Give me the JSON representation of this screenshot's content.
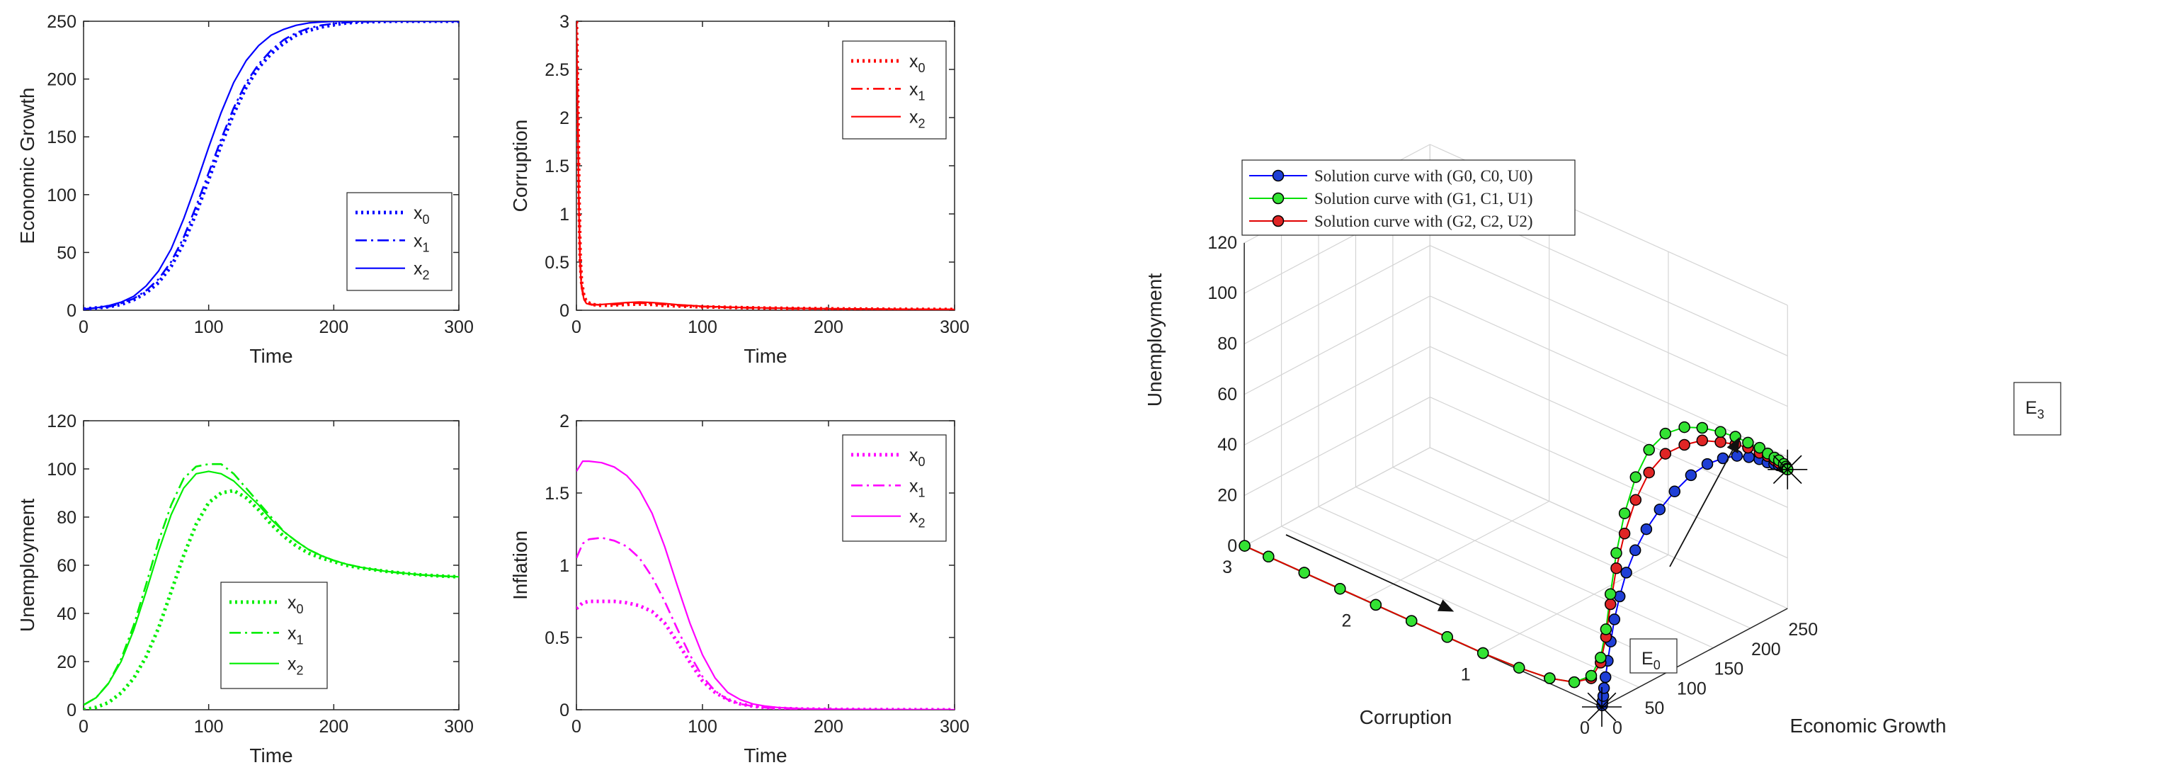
{
  "figure": {
    "panel_xlabel": "Time",
    "legend_base": "x",
    "legend_subs": [
      "0",
      "1",
      "2"
    ]
  },
  "chart_data": [
    {
      "id": "growth",
      "type": "line",
      "title": "",
      "xlabel": "Time",
      "ylabel": "Economic Growth",
      "color": "#0000ff",
      "xlim": [
        0,
        300
      ],
      "ylim": [
        0,
        250
      ],
      "xticks": [
        0,
        100,
        200,
        300
      ],
      "yticks": [
        0,
        50,
        100,
        150,
        200,
        250
      ],
      "legend_position": "bottom-right",
      "x": [
        0,
        10,
        20,
        30,
        40,
        50,
        60,
        70,
        80,
        90,
        100,
        110,
        120,
        130,
        140,
        150,
        160,
        170,
        180,
        190,
        200,
        210,
        220,
        230,
        240,
        250,
        260,
        270,
        280,
        290,
        300
      ],
      "series": [
        {
          "name": "x0",
          "style": "dotted",
          "values": [
            1,
            2,
            3,
            5,
            9,
            15,
            24,
            38,
            58,
            84,
            113,
            143,
            170,
            193,
            210,
            222,
            231,
            238,
            242,
            245,
            247,
            248.5,
            249.2,
            249.6,
            249.8,
            250,
            250,
            250,
            250,
            250,
            250
          ]
        },
        {
          "name": "x1",
          "style": "dashdot",
          "values": [
            1,
            2,
            3,
            6,
            10,
            17,
            27,
            42,
            63,
            90,
            119,
            148,
            175,
            197,
            213,
            225,
            234,
            240,
            244,
            246.5,
            248,
            249,
            249.5,
            249.8,
            250,
            250,
            250,
            250,
            250,
            250,
            250
          ]
        },
        {
          "name": "x2",
          "style": "solid",
          "values": [
            1,
            2,
            4,
            7,
            12,
            21,
            34,
            53,
            79,
            109,
            141,
            171,
            197,
            216,
            229,
            238,
            243,
            246.5,
            248.5,
            249.4,
            249.8,
            250,
            250,
            250,
            250,
            250,
            250,
            250,
            250,
            250,
            250
          ]
        }
      ]
    },
    {
      "id": "corruption",
      "type": "line",
      "title": "",
      "xlabel": "Time",
      "ylabel": "Corruption",
      "color": "#ff0000",
      "xlim": [
        0,
        300
      ],
      "ylim": [
        0,
        3
      ],
      "xticks": [
        0,
        100,
        200,
        300
      ],
      "yticks": [
        0,
        0.5,
        1,
        1.5,
        2,
        2.5,
        3
      ],
      "legend_position": "top-right",
      "x": [
        0,
        1,
        2,
        3,
        4,
        6,
        8,
        12,
        20,
        30,
        40,
        50,
        60,
        70,
        80,
        100,
        120,
        150,
        200,
        250,
        300
      ],
      "series": [
        {
          "name": "x0",
          "style": "dotted",
          "values": [
            3.0,
            2.2,
            1.2,
            0.55,
            0.3,
            0.14,
            0.09,
            0.06,
            0.05,
            0.055,
            0.06,
            0.065,
            0.06,
            0.05,
            0.045,
            0.035,
            0.03,
            0.022,
            0.015,
            0.01,
            0.008
          ]
        },
        {
          "name": "x1",
          "style": "dashdot",
          "values": [
            3.0,
            2.1,
            1.1,
            0.5,
            0.27,
            0.12,
            0.08,
            0.06,
            0.055,
            0.06,
            0.07,
            0.075,
            0.07,
            0.06,
            0.05,
            0.038,
            0.03,
            0.022,
            0.015,
            0.01,
            0.008
          ]
        },
        {
          "name": "x2",
          "style": "solid",
          "values": [
            3.0,
            2.0,
            1.0,
            0.45,
            0.24,
            0.11,
            0.07,
            0.055,
            0.06,
            0.07,
            0.08,
            0.085,
            0.08,
            0.07,
            0.058,
            0.042,
            0.032,
            0.024,
            0.016,
            0.011,
            0.008
          ]
        }
      ]
    },
    {
      "id": "unemployment",
      "type": "line",
      "title": "",
      "xlabel": "Time",
      "ylabel": "Unemployment",
      "color": "#00ee00",
      "xlim": [
        0,
        300
      ],
      "ylim": [
        0,
        120
      ],
      "xticks": [
        0,
        100,
        200,
        300
      ],
      "yticks": [
        0,
        20,
        40,
        60,
        80,
        100,
        120
      ],
      "legend_position": "bottom-center",
      "x": [
        0,
        10,
        20,
        30,
        40,
        50,
        60,
        70,
        80,
        90,
        100,
        110,
        120,
        130,
        140,
        150,
        160,
        170,
        180,
        190,
        200,
        210,
        220,
        230,
        240,
        250,
        260,
        270,
        280,
        290,
        300
      ],
      "series": [
        {
          "name": "x0",
          "style": "dotted",
          "values": [
            0,
            1,
            3,
            7,
            13,
            22,
            34,
            49,
            64,
            77,
            86,
            90,
            91,
            88,
            83,
            77,
            72,
            68,
            65,
            63,
            61.5,
            60,
            59,
            58.3,
            57.6,
            57,
            56.5,
            56,
            55.7,
            55.4,
            55.2
          ]
        },
        {
          "name": "x1",
          "style": "dashdot",
          "values": [
            2,
            5,
            11,
            21,
            35,
            52,
            70,
            85,
            96,
            101,
            102,
            102,
            98,
            92,
            86,
            80,
            74,
            70,
            66.5,
            64,
            62,
            60.5,
            59.3,
            58.4,
            57.6,
            57,
            56.5,
            56,
            55.7,
            55.4,
            55.2
          ]
        },
        {
          "name": "x2",
          "style": "solid",
          "values": [
            2,
            5,
            11,
            20,
            33,
            49,
            66,
            81,
            92,
            98,
            99,
            98,
            95,
            90,
            85,
            79,
            74,
            70,
            66.5,
            64,
            62,
            60.5,
            59.3,
            58.4,
            57.6,
            57,
            56.5,
            56,
            55.7,
            55.4,
            55.2
          ]
        }
      ]
    },
    {
      "id": "inflation",
      "type": "line",
      "title": "",
      "xlabel": "Time",
      "ylabel": "Inflation",
      "color": "#ff00ff",
      "xlim": [
        0,
        300
      ],
      "ylim": [
        0,
        2
      ],
      "xticks": [
        0,
        100,
        200,
        300
      ],
      "yticks": [
        0,
        0.5,
        1,
        1.5,
        2
      ],
      "legend_position": "top-right",
      "x": [
        0,
        5,
        10,
        20,
        30,
        40,
        50,
        60,
        70,
        80,
        90,
        100,
        110,
        120,
        130,
        140,
        150,
        160,
        180,
        200,
        250,
        300
      ],
      "series": [
        {
          "name": "x0",
          "style": "dotted",
          "values": [
            0.7,
            0.74,
            0.75,
            0.75,
            0.75,
            0.74,
            0.72,
            0.68,
            0.6,
            0.47,
            0.33,
            0.2,
            0.12,
            0.07,
            0.04,
            0.025,
            0.015,
            0.01,
            0.005,
            0.003,
            0.001,
            0
          ]
        },
        {
          "name": "x1",
          "style": "dashdot",
          "values": [
            1.05,
            1.15,
            1.18,
            1.19,
            1.17,
            1.13,
            1.05,
            0.92,
            0.75,
            0.56,
            0.38,
            0.23,
            0.13,
            0.07,
            0.04,
            0.025,
            0.015,
            0.01,
            0.005,
            0.003,
            0.001,
            0
          ]
        },
        {
          "name": "x2",
          "style": "solid",
          "values": [
            1.65,
            1.72,
            1.72,
            1.71,
            1.68,
            1.62,
            1.52,
            1.36,
            1.13,
            0.86,
            0.6,
            0.38,
            0.22,
            0.12,
            0.07,
            0.04,
            0.025,
            0.015,
            0.007,
            0.004,
            0.001,
            0
          ]
        }
      ]
    },
    {
      "id": "phase3d",
      "type": "line3d",
      "title": "",
      "xlabel": "Economic Growth",
      "ylabel": "Corruption",
      "zlabel": "Unemployment",
      "xlim": [
        0,
        250
      ],
      "ylim": [
        0,
        3
      ],
      "zlim": [
        0,
        120
      ],
      "xticks": [
        0,
        50,
        100,
        150,
        200,
        250
      ],
      "yticks": [
        0,
        1,
        2,
        3
      ],
      "zticks": [
        0,
        20,
        40,
        60,
        80,
        100,
        120
      ],
      "legend_position": "top-left",
      "annotations": [
        "E",
        "E"
      ],
      "annotation_subs": [
        "0",
        "3"
      ],
      "series": [
        {
          "name": "Solution curve with (G0, C0, U0)",
          "color": "#0000ff",
          "marker": "#1f3fd6",
          "G": [
            0.5,
            1,
            2,
            3,
            5,
            8,
            12,
            17,
            24,
            33,
            45,
            60,
            78,
            98,
            120,
            142,
            163,
            182,
            198,
            212,
            223,
            232,
            238,
            243,
            246,
            248,
            249.5,
            250
          ],
          "C": [
            0,
            0,
            0,
            0,
            0,
            0,
            0,
            0,
            0,
            0,
            0,
            0,
            0,
            0,
            0,
            0,
            0,
            0,
            0,
            0,
            0,
            0,
            0,
            0,
            0,
            0,
            0,
            0
          ],
          "U": [
            0.5,
            2,
            4,
            7,
            11,
            17,
            24,
            32,
            40,
            48,
            55,
            61,
            66,
            70,
            73,
            74,
            73,
            71,
            68,
            65,
            62,
            60,
            58.5,
            57.2,
            56.3,
            55.7,
            55.3,
            55
          ]
        },
        {
          "name": "Solution curve with (G1, C1, U1)",
          "color": "#00e000",
          "marker": "#33e333",
          "G": [
            0.5,
            0.5,
            0.5,
            0.5,
            0.5,
            0.5,
            0.5,
            0.5,
            1,
            2,
            3,
            5,
            8,
            12,
            18,
            26,
            37,
            52,
            70,
            92,
            116,
            140,
            163,
            183,
            200,
            214,
            225,
            234,
            240,
            245,
            248,
            249.5,
            250
          ],
          "C": [
            3.0,
            2.8,
            2.5,
            2.2,
            1.9,
            1.6,
            1.3,
            1.0,
            0.7,
            0.45,
            0.25,
            0.12,
            0.06,
            0.04,
            0.04,
            0.04,
            0.04,
            0.04,
            0.04,
            0.04,
            0.03,
            0.03,
            0.02,
            0.02,
            0.02,
            0.01,
            0.01,
            0.01,
            0.01,
            0,
            0,
            0,
            0
          ],
          "U": [
            0,
            0,
            0,
            0,
            0,
            0,
            0,
            0,
            0.5,
            1.5,
            4,
            9,
            17,
            28,
            41,
            56,
            70,
            82,
            90,
            93,
            92,
            88,
            83,
            78,
            73,
            69,
            65,
            62,
            60,
            58,
            56.5,
            55.5,
            55
          ]
        },
        {
          "name": "Solution curve with (G2, C2, U2)",
          "color": "#e00000",
          "marker": "#e02525",
          "G": [
            0.5,
            0.5,
            0.5,
            0.5,
            0.5,
            0.5,
            0.5,
            0.5,
            1,
            2,
            3,
            5,
            8,
            12,
            18,
            26,
            37,
            52,
            70,
            92,
            116,
            140,
            163,
            183,
            200,
            214,
            225,
            234,
            240,
            245,
            248,
            249.5,
            250
          ],
          "C": [
            3.0,
            2.8,
            2.5,
            2.2,
            1.9,
            1.6,
            1.3,
            1.0,
            0.7,
            0.45,
            0.25,
            0.12,
            0.06,
            0.04,
            0.04,
            0.04,
            0.04,
            0.04,
            0.04,
            0.04,
            0.03,
            0.03,
            0.02,
            0.02,
            0.02,
            0.01,
            0.01,
            0.01,
            0.01,
            0,
            0,
            0,
            0
          ],
          "U": [
            0,
            0,
            0,
            0,
            0,
            0,
            0,
            0,
            0.5,
            1.5,
            4,
            8,
            15,
            25,
            37,
            50,
            62,
            73,
            81,
            85,
            85,
            83,
            79,
            75,
            71,
            67,
            64,
            61,
            59,
            57.5,
            56.3,
            55.5,
            55
          ]
        }
      ]
    }
  ]
}
